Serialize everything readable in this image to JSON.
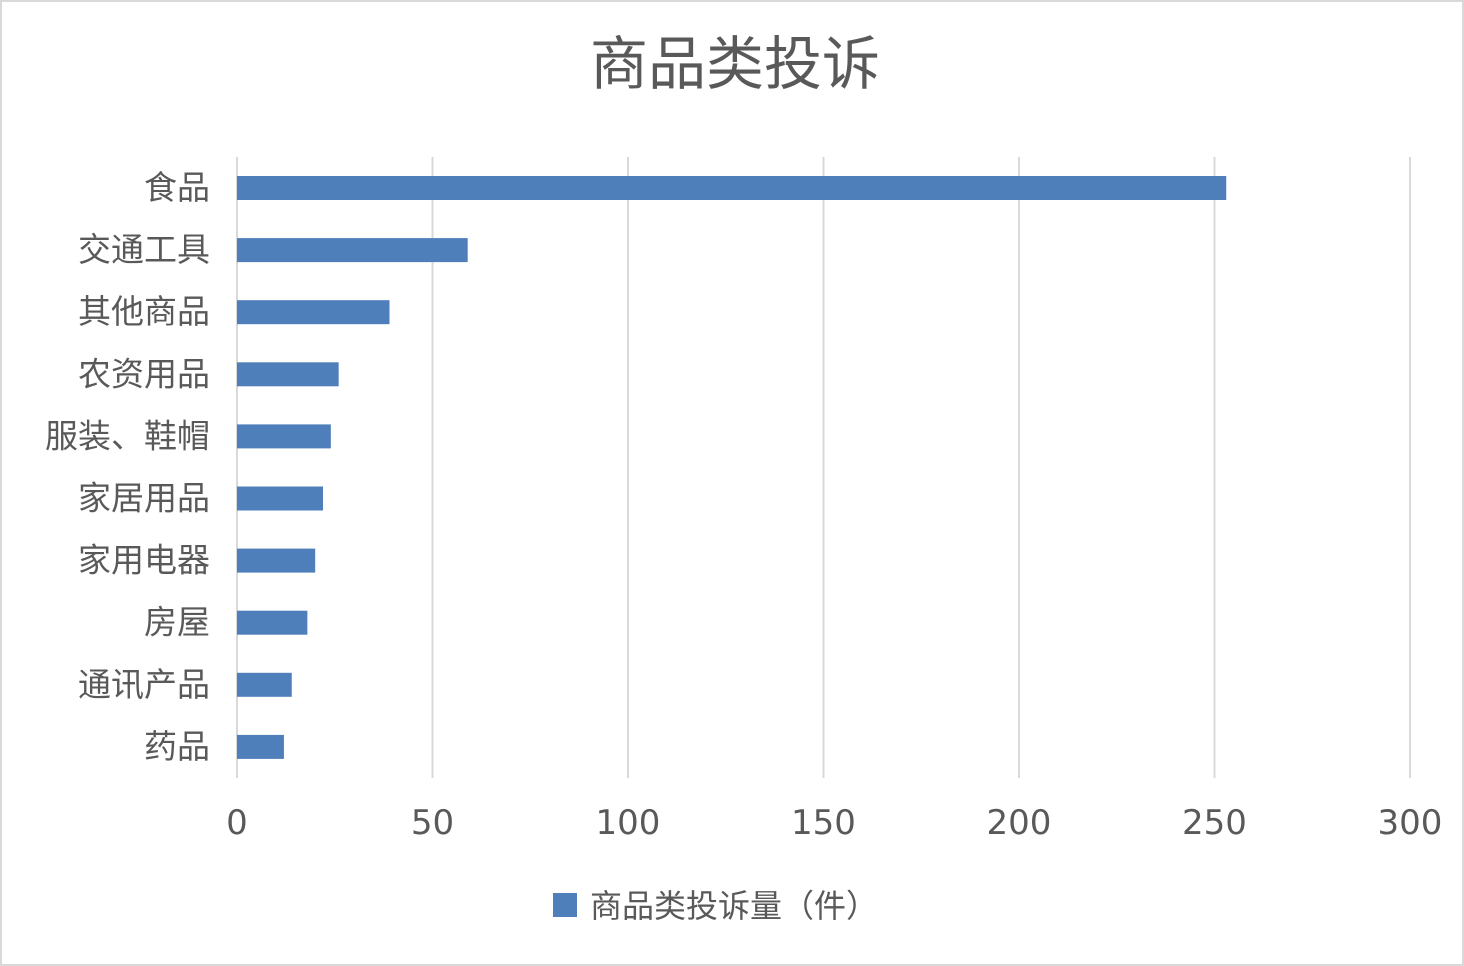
{
  "chart_data": {
    "type": "bar",
    "orientation": "horizontal",
    "title": "商品类投诉",
    "categories": [
      "食品",
      "交通工具",
      "其他商品",
      "农资用品",
      "服装、鞋帽",
      "家居用品",
      "家用电器",
      "房屋",
      "通讯产品",
      "药品"
    ],
    "series": [
      {
        "name": "商品类投诉量（件）",
        "color": "#4e7fbb",
        "values": [
          253,
          59,
          39,
          26,
          24,
          22,
          20,
          18,
          14,
          12
        ]
      }
    ],
    "xlim": [
      0,
      300
    ],
    "xticks": [
      0,
      50,
      100,
      150,
      200,
      250,
      300
    ],
    "grid": "vertical",
    "legend_position": "bottom"
  }
}
